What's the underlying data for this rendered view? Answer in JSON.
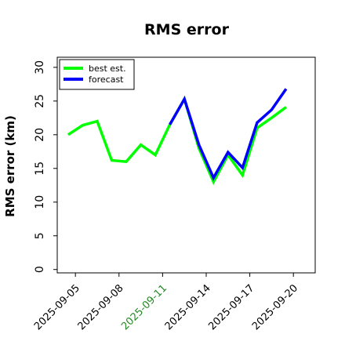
{
  "chart_data": {
    "type": "line",
    "title": "RMS error",
    "xlabel": "",
    "ylabel": "RMS error (km)",
    "ylim": [
      -0.5,
      31.5
    ],
    "xlim": [
      "2025-09-03T18:00",
      "2025-09-21T12:00"
    ],
    "yticks": [
      0,
      5,
      10,
      15,
      20,
      25,
      30
    ],
    "xticks": [
      {
        "date": "2025-09-05",
        "label": "2025-09-05",
        "color": "#000000"
      },
      {
        "date": "2025-09-08",
        "label": "2025-09-08",
        "color": "#000000"
      },
      {
        "date": "2025-09-11",
        "label": "2025-09-11",
        "color": "#228b22"
      },
      {
        "date": "2025-09-14",
        "label": "2025-09-14",
        "color": "#000000"
      },
      {
        "date": "2025-09-17",
        "label": "2025-09-17",
        "color": "#000000"
      },
      {
        "date": "2025-09-20",
        "label": "2025-09-20",
        "color": "#000000"
      }
    ],
    "grid": false,
    "legend_position": "top-left",
    "series": [
      {
        "name": "best est.",
        "color": "#00ff00",
        "x": [
          "2025-09-04T12:00",
          "2025-09-05T12:00",
          "2025-09-06T12:00",
          "2025-09-07T12:00",
          "2025-09-08T12:00",
          "2025-09-09T12:00",
          "2025-09-10T12:00",
          "2025-09-11T12:00",
          "2025-09-12T12:00",
          "2025-09-13T12:00",
          "2025-09-14T12:00",
          "2025-09-15T12:00",
          "2025-09-16T12:00",
          "2025-09-17T12:00",
          "2025-09-18T12:00",
          "2025-09-19T12:00"
        ],
        "y": [
          20.0,
          21.4,
          22.0,
          16.2,
          16.0,
          18.5,
          17.0,
          21.5,
          25.3,
          18.0,
          13.0,
          17.0,
          14.0,
          21.0,
          22.5,
          24.1
        ]
      },
      {
        "name": "forecast",
        "color": "#0000ff",
        "x": [
          "2025-09-11T12:00",
          "2025-09-12T12:00",
          "2025-09-13T12:00",
          "2025-09-14T12:00",
          "2025-09-15T12:00",
          "2025-09-16T12:00",
          "2025-09-17T12:00",
          "2025-09-18T12:00",
          "2025-09-19T12:00"
        ],
        "y": [
          21.5,
          25.3,
          18.5,
          13.6,
          17.4,
          15.1,
          21.8,
          23.7,
          26.8
        ]
      }
    ]
  }
}
